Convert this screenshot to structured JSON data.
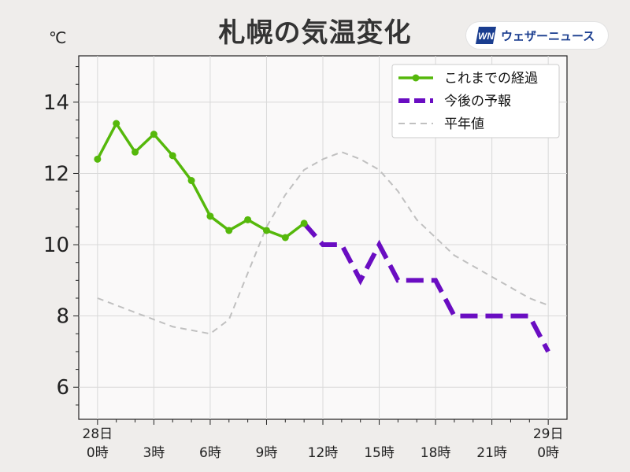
{
  "header": {
    "title": "札幌の気温変化",
    "unit": "℃",
    "brand": "ウェザーニュース",
    "brand_logo_text": "WN"
  },
  "chart_data": {
    "type": "line",
    "title": "札幌の気温変化",
    "ylabel": "℃",
    "xlim": [
      -1,
      25
    ],
    "ylim": [
      5.1,
      15.3
    ],
    "yticks": [
      6,
      8,
      10,
      12,
      14
    ],
    "x_major_ticks": [
      0,
      3,
      6,
      9,
      12,
      15,
      18,
      21,
      24
    ],
    "x_tick_labels": [
      {
        "x": 0,
        "lines": [
          "28日",
          "0時"
        ]
      },
      {
        "x": 3,
        "lines": [
          "3時"
        ]
      },
      {
        "x": 6,
        "lines": [
          "6時"
        ]
      },
      {
        "x": 9,
        "lines": [
          "9時"
        ]
      },
      {
        "x": 12,
        "lines": [
          "12時"
        ]
      },
      {
        "x": 15,
        "lines": [
          "15時"
        ]
      },
      {
        "x": 18,
        "lines": [
          "18時"
        ]
      },
      {
        "x": 21,
        "lines": [
          "21時"
        ]
      },
      {
        "x": 24,
        "lines": [
          "29日",
          "0時"
        ]
      }
    ],
    "grid": true,
    "legend_position": "top-right",
    "series": [
      {
        "name": "これまでの経過",
        "color": "#55b80b",
        "style": "solid-markers",
        "x": [
          0,
          1,
          2,
          3,
          4,
          5,
          6,
          7,
          8,
          9,
          10,
          11
        ],
        "y": [
          12.4,
          13.4,
          12.6,
          13.1,
          12.5,
          11.8,
          10.8,
          10.4,
          10.7,
          10.4,
          10.2,
          10.6
        ]
      },
      {
        "name": "今後の予報",
        "color": "#6a0dc2",
        "style": "thick-dash",
        "x": [
          11,
          12,
          13,
          14,
          15,
          16,
          17,
          18,
          19,
          20,
          21,
          22,
          23,
          24
        ],
        "y": [
          10.6,
          10.0,
          10.0,
          9.0,
          10.0,
          9.0,
          9.0,
          9.0,
          8.0,
          8.0,
          8.0,
          8.0,
          8.0,
          7.0
        ]
      },
      {
        "name": "平年値",
        "color": "#c0c0c0",
        "style": "thin-dash",
        "x": [
          0,
          1,
          2,
          3,
          4,
          5,
          6,
          7,
          8,
          9,
          10,
          11,
          12,
          13,
          14,
          15,
          16,
          17,
          18,
          19,
          20,
          21,
          22,
          23,
          24
        ],
        "y": [
          8.5,
          8.3,
          8.1,
          7.9,
          7.7,
          7.6,
          7.5,
          7.9,
          9.2,
          10.5,
          11.4,
          12.1,
          12.4,
          12.6,
          12.4,
          12.1,
          11.5,
          10.7,
          10.2,
          9.7,
          9.4,
          9.1,
          8.8,
          8.5,
          8.3
        ]
      }
    ]
  }
}
